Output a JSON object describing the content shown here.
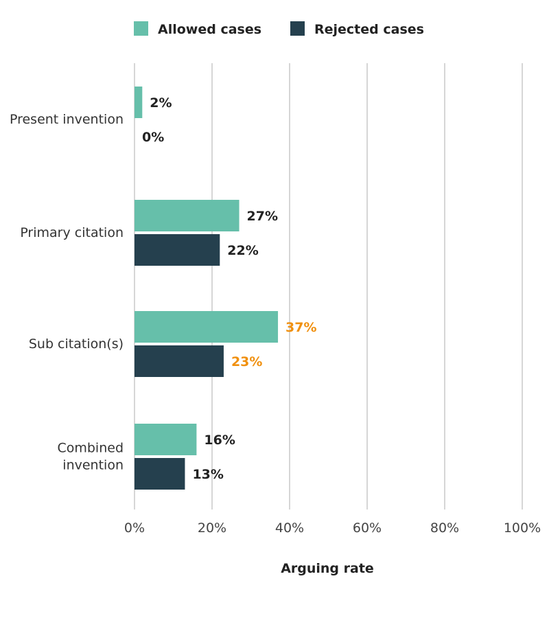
{
  "chart_data": {
    "type": "bar",
    "orientation": "horizontal",
    "categories": [
      "Present invention",
      "Primary citation",
      "Sub citation(s)",
      "Combined invention"
    ],
    "category_lines": [
      [
        "Present invention"
      ],
      [
        "Primary citation"
      ],
      [
        "Sub citation(s)"
      ],
      [
        "Combined",
        "invention"
      ]
    ],
    "series": [
      {
        "name": "Allowed cases",
        "color": "#66bfaa",
        "values": [
          2,
          27,
          37,
          16
        ],
        "labels": [
          "2%",
          "27%",
          "37%",
          "16%"
        ]
      },
      {
        "name": "Rejected cases",
        "color": "#25404e",
        "values": [
          0,
          22,
          23,
          13
        ],
        "labels": [
          "0%",
          "22%",
          "23%",
          "13%"
        ]
      }
    ],
    "label_colors": [
      [
        "#222222",
        "#222222"
      ],
      [
        "#222222",
        "#222222"
      ],
      [
        "#f0900f",
        "#f0900f"
      ],
      [
        "#222222",
        "#222222"
      ]
    ],
    "xlabel": "Arguing rate",
    "xlim": [
      0,
      100
    ],
    "xticks": [
      0,
      20,
      40,
      60,
      80,
      100
    ],
    "xtick_labels": [
      "0%",
      "20%",
      "40%",
      "60%",
      "80%",
      "100%"
    ],
    "grid": true,
    "legend": "top-center"
  }
}
